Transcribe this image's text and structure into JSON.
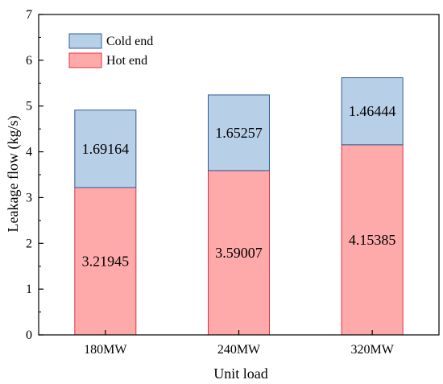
{
  "chart_data": {
    "type": "bar",
    "stacked": true,
    "categories": [
      "180MW",
      "240MW",
      "320MW"
    ],
    "series": [
      {
        "name": "Hot end",
        "values": [
          3.21945,
          3.59007,
          4.15385
        ],
        "labels": [
          "3.21945",
          "3.59007",
          "4.15385"
        ],
        "fill": "#ffaaaa",
        "stroke": "#e0323c"
      },
      {
        "name": "Cold end",
        "values": [
          1.69164,
          1.65257,
          1.46444
        ],
        "labels": [
          "1.69164",
          "1.65257",
          "1.46444"
        ],
        "fill": "#b8cfe8",
        "stroke": "#2f5d96"
      }
    ],
    "legend_order": [
      "Cold end",
      "Hot end"
    ],
    "legend_position": "top-left",
    "xlabel": "Unit load",
    "ylabel": "Leakage flow (kg/s)",
    "ylim": [
      0,
      7
    ],
    "yticks": [
      "0",
      "1",
      "2",
      "3",
      "4",
      "5",
      "6",
      "7"
    ],
    "grid": false
  }
}
